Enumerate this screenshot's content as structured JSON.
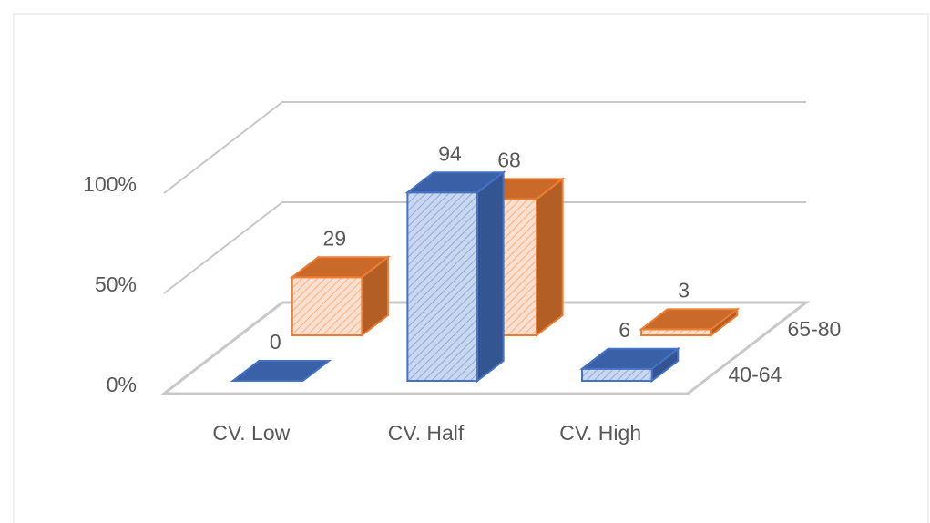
{
  "chart_data": {
    "type": "bar",
    "categories": [
      "CV. Low",
      "CV. Half",
      "CV. High"
    ],
    "series": [
      {
        "name": "40-64",
        "color": "#4472c4",
        "values": [
          0,
          94,
          6
        ]
      },
      {
        "name": "65-80",
        "color": "#ed7d31",
        "values": [
          29,
          68,
          3
        ]
      }
    ],
    "ylim": [
      0,
      100
    ],
    "yticks": [
      {
        "value": 0,
        "label": "0%"
      },
      {
        "value": 50,
        "label": "50%"
      },
      {
        "value": 100,
        "label": "100%"
      }
    ],
    "grid": true
  }
}
